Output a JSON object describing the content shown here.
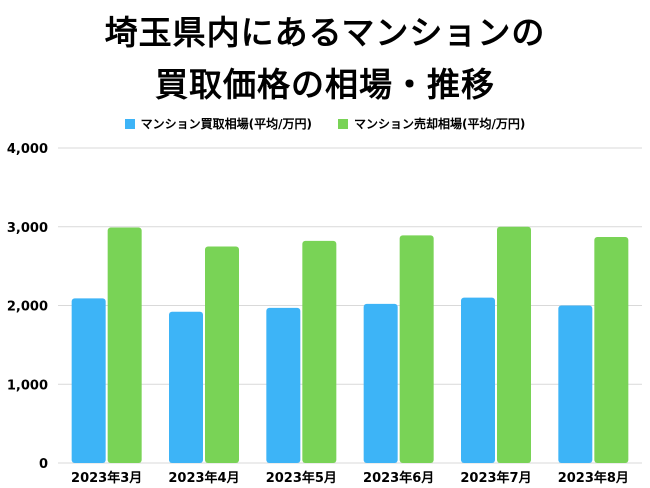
{
  "title_line1": "埼玉県内にあるマンションの",
  "title_line2": "買取価格の相場・推移",
  "colors": {
    "purchase": "#3db4f7",
    "sale": "#79d356",
    "grid": "#d9d9d9"
  },
  "chart_data": {
    "type": "bar",
    "categories": [
      "2023年3月",
      "2023年4月",
      "2023年5月",
      "2023年6月",
      "2023年7月",
      "2023年8月"
    ],
    "series": [
      {
        "name": "マンション買取相場(平均/万円)",
        "values": [
          2090,
          1920,
          1970,
          2020,
          2100,
          2000
        ]
      },
      {
        "name": "マンション売却相場(平均/万円)",
        "values": [
          2990,
          2750,
          2820,
          2890,
          3000,
          2870
        ]
      }
    ],
    "yticks": [
      "0",
      "1,000",
      "2,000",
      "3,000",
      "4,000"
    ],
    "ylim": [
      0,
      4000
    ],
    "grid": true,
    "legend_position": "top"
  }
}
